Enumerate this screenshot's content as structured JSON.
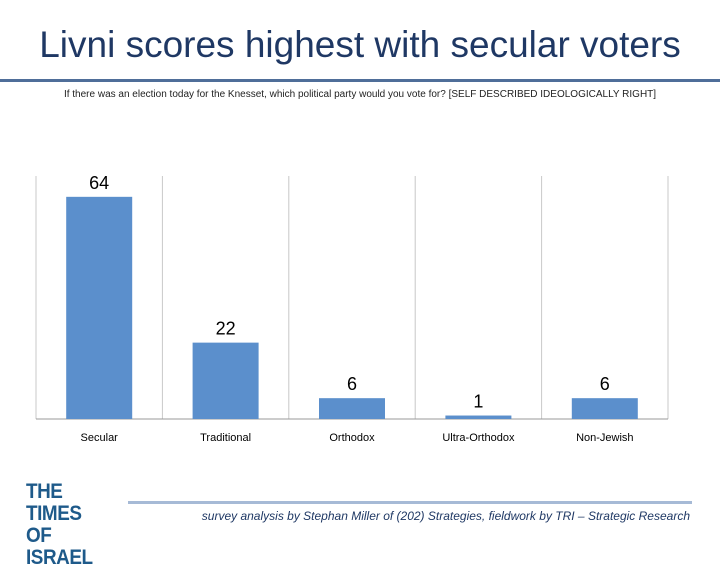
{
  "title": "Livni scores highest with secular voters",
  "subtitle": "If there was an election today for the Knesset, which political party would you vote for? [SELF DESCRIBED IDEOLOGICALLY RIGHT]",
  "footer": "survey analysis by Stephan Miller of (202) Strategies, fieldwork by TRI – Strategic Research",
  "logo": {
    "line1": "THE TIMES",
    "line2": "OF ISRAEL"
  },
  "colors": {
    "bar": "#5b8fcc",
    "title": "#1f3864",
    "logo": "#1e5a8a"
  },
  "chart_data": {
    "type": "bar",
    "categories": [
      "Secular",
      "Traditional",
      "Orthodox",
      "Ultra-Orthodox",
      "Non-Jewish"
    ],
    "values": [
      64,
      22,
      6,
      1,
      6
    ],
    "data_labels": [
      "64",
      "22",
      "6",
      "1",
      "6"
    ],
    "ylim": [
      0,
      70
    ],
    "grid": "vertical category separators"
  }
}
